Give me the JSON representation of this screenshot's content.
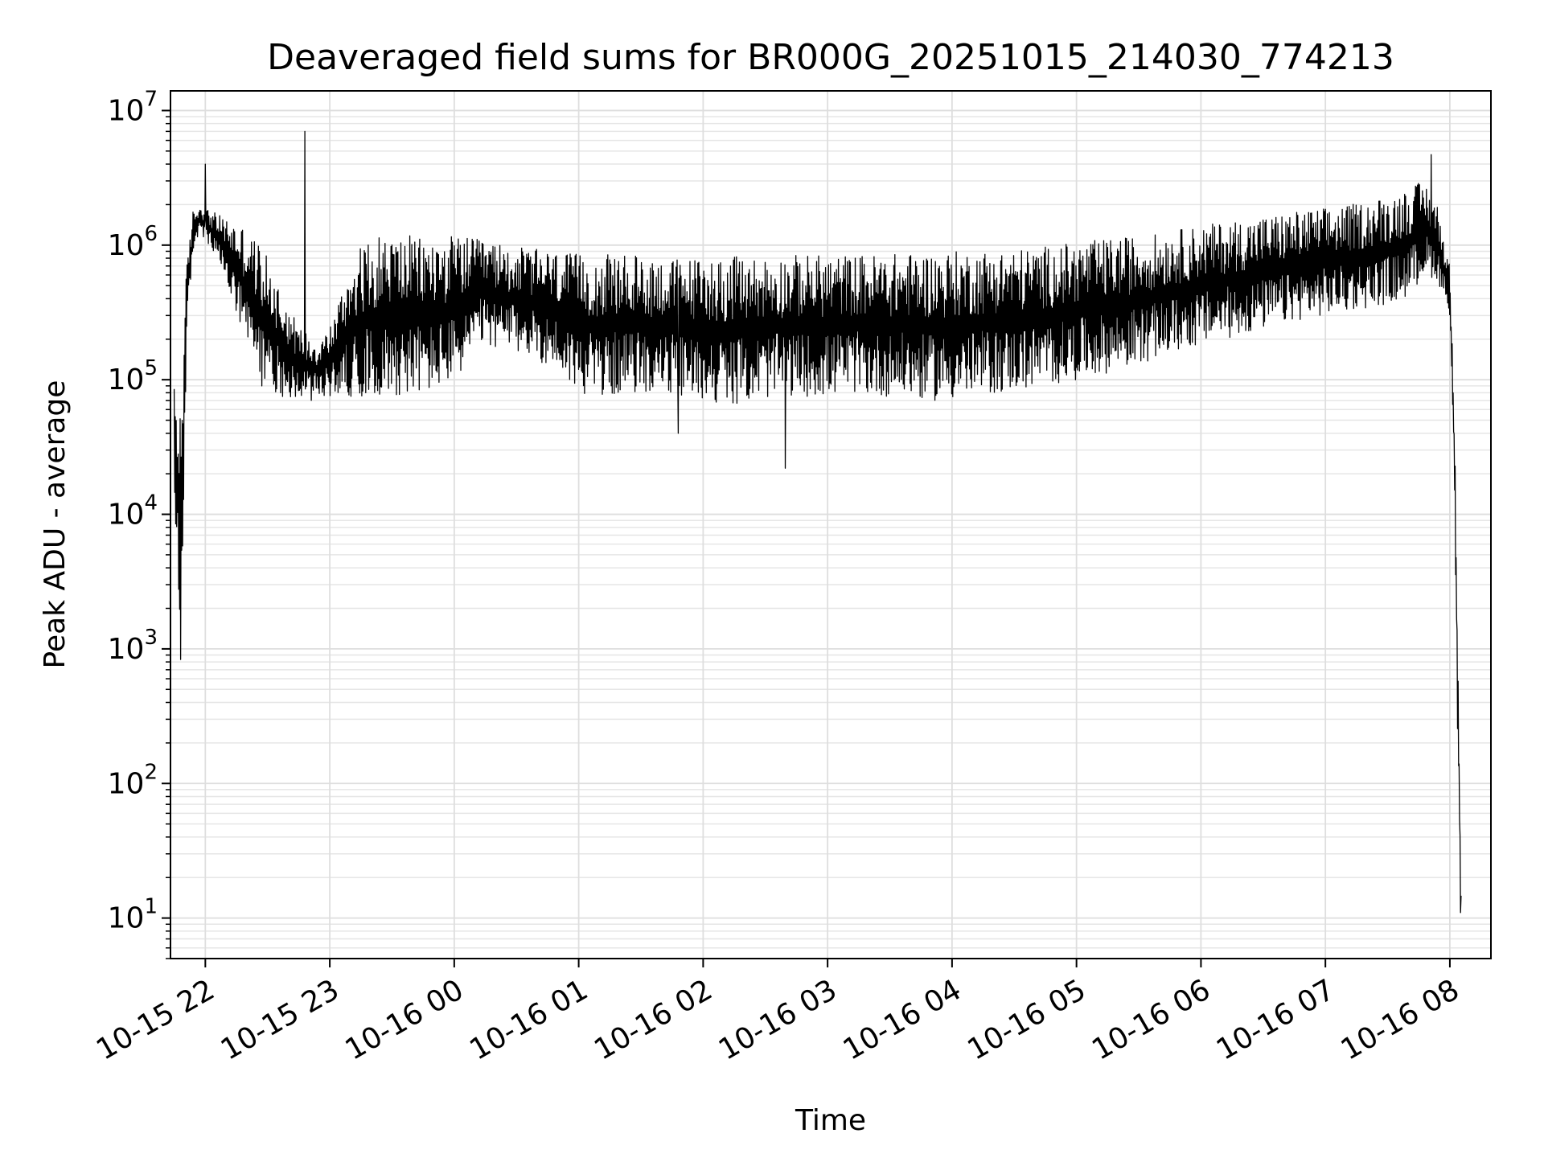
{
  "chart_data": {
    "type": "line",
    "title": "Deaveraged field sums for BR000G_20251015_214030_774213",
    "xlabel": "Time",
    "ylabel": "Peak ADU - average",
    "yscale": "log",
    "ylim": [
      5,
      14000000
    ],
    "xlim_hours": [
      -0.28,
      10.33
    ],
    "xlim_note": "hours relative to 2025-10-15 22:00",
    "grid": true,
    "line_color": "#000000",
    "x_ticks": [
      {
        "hour": 0,
        "label": "10-15 22"
      },
      {
        "hour": 1,
        "label": "10-15 23"
      },
      {
        "hour": 2,
        "label": "10-16 00"
      },
      {
        "hour": 3,
        "label": "10-16 01"
      },
      {
        "hour": 4,
        "label": "10-16 02"
      },
      {
        "hour": 5,
        "label": "10-16 03"
      },
      {
        "hour": 6,
        "label": "10-16 04"
      },
      {
        "hour": 7,
        "label": "10-16 05"
      },
      {
        "hour": 8,
        "label": "10-16 06"
      },
      {
        "hour": 9,
        "label": "10-16 07"
      },
      {
        "hour": 10,
        "label": "10-16 08"
      }
    ],
    "y_ticks": [
      {
        "value": 10,
        "base": "10",
        "exp": "1"
      },
      {
        "value": 100,
        "base": "10",
        "exp": "2"
      },
      {
        "value": 1000,
        "base": "10",
        "exp": "3"
      },
      {
        "value": 10000,
        "base": "10",
        "exp": "4"
      },
      {
        "value": 100000,
        "base": "10",
        "exp": "5"
      },
      {
        "value": 1000000,
        "base": "10",
        "exp": "6"
      },
      {
        "value": 10000000,
        "base": "10",
        "exp": "7"
      }
    ],
    "series": [
      {
        "name": "deaveraged field sums",
        "description": "band envelope: low/high per time",
        "x_hours": [
          -0.25,
          -0.2,
          -0.15,
          -0.1,
          -0.05,
          0.0,
          0.15,
          0.3,
          0.45,
          0.6,
          0.75,
          0.9,
          1.0,
          1.2,
          1.4,
          1.6,
          1.8,
          2.0,
          2.2,
          2.4,
          2.6,
          2.8,
          3.0,
          3.2,
          3.4,
          3.6,
          3.8,
          4.0,
          4.2,
          4.4,
          4.6,
          4.8,
          5.0,
          5.2,
          5.4,
          5.6,
          5.8,
          6.0,
          6.2,
          6.4,
          6.6,
          6.8,
          7.0,
          7.2,
          7.4,
          7.6,
          7.8,
          8.0,
          8.2,
          8.4,
          8.6,
          8.8,
          9.0,
          9.2,
          9.4,
          9.6,
          9.7,
          9.8,
          9.9,
          10.0,
          10.03,
          10.06,
          10.09
        ],
        "low": [
          11000,
          500,
          200000,
          900000,
          1200000,
          1100000,
          600000,
          200000,
          90000,
          75000,
          70000,
          70000,
          75000,
          75000,
          75000,
          78000,
          80000,
          95000,
          180000,
          170000,
          150000,
          120000,
          80000,
          75000,
          80000,
          80000,
          75000,
          70000,
          65000,
          70000,
          75000,
          75000,
          75000,
          80000,
          75000,
          75000,
          70000,
          70000,
          75000,
          80000,
          85000,
          90000,
          100000,
          110000,
          120000,
          140000,
          160000,
          180000,
          200000,
          220000,
          250000,
          280000,
          300000,
          320000,
          350000,
          380000,
          450000,
          600000,
          550000,
          300000,
          30000,
          300,
          6
        ],
        "high": [
          90000,
          80000,
          700000,
          1800000,
          2000000,
          1900000,
          1600000,
          1400000,
          1000000,
          500000,
          250000,
          200000,
          250000,
          900000,
          1200000,
          1200000,
          1100000,
          1200000,
          1100000,
          1000000,
          950000,
          900000,
          850000,
          850000,
          850000,
          820000,
          800000,
          820000,
          820000,
          820000,
          840000,
          850000,
          850000,
          850000,
          860000,
          870000,
          880000,
          900000,
          920000,
          930000,
          950000,
          1000000,
          1050000,
          1100000,
          1150000,
          1200000,
          1300000,
          1400000,
          1500000,
          1600000,
          1700000,
          1800000,
          1900000,
          2000000,
          2200000,
          2500000,
          2800000,
          3000000,
          2000000,
          700000,
          100000,
          3000,
          20
        ]
      }
    ],
    "annotations": [
      {
        "type": "spike",
        "hour": 0.0,
        "value": 4000000
      },
      {
        "type": "spike",
        "hour": 0.8,
        "value": 7000000
      },
      {
        "type": "spike",
        "hour": 9.85,
        "value": 4700000
      },
      {
        "type": "dip",
        "hour": 4.66,
        "value": 22000
      },
      {
        "type": "dip",
        "hour": 3.8,
        "value": 40000
      }
    ]
  }
}
